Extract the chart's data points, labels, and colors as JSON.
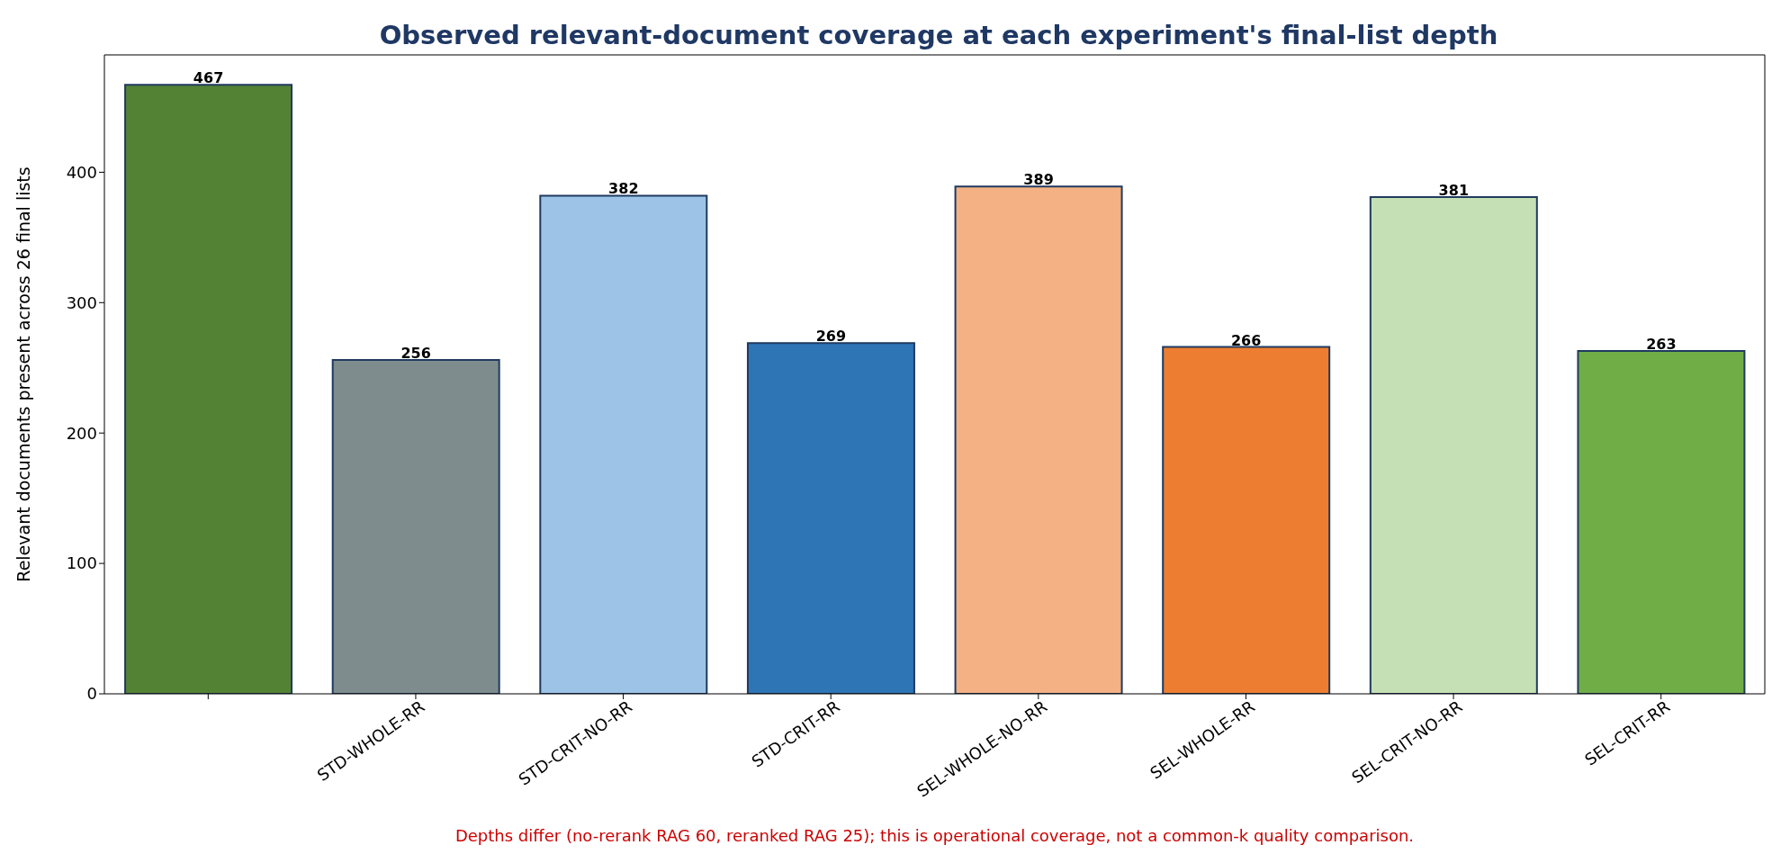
{
  "chart_data": {
    "type": "bar",
    "title": "Observed relevant-document coverage at each experiment's final-list depth",
    "ylabel": "Relevant documents present across 26 final lists",
    "categories": [
      null,
      "STD-WHOLE-RR",
      "STD-CRIT-NO-RR",
      "STD-CRIT-RR",
      "SEL-WHOLE-NO-RR",
      "SEL-WHOLE-RR",
      "SEL-CRIT-NO-RR",
      "SEL-CRIT-RR"
    ],
    "values": [
      467,
      256,
      382,
      269,
      389,
      266,
      381,
      263
    ],
    "colors": [
      "#548235",
      "#7f8c8d",
      "#9dc3e6",
      "#2e75b6",
      "#f4b183",
      "#ed7d31",
      "#c5e0b4",
      "#70ad47"
    ],
    "ylim": [
      0,
      490
    ],
    "yticks": [
      0,
      100,
      200,
      300,
      400
    ],
    "grid": false,
    "data_labels": true,
    "annotations": [
      "Depths differ (no-rerank RAG 60, reranked RAG 25); this is operational coverage, not a common-k quality comparison."
    ]
  }
}
